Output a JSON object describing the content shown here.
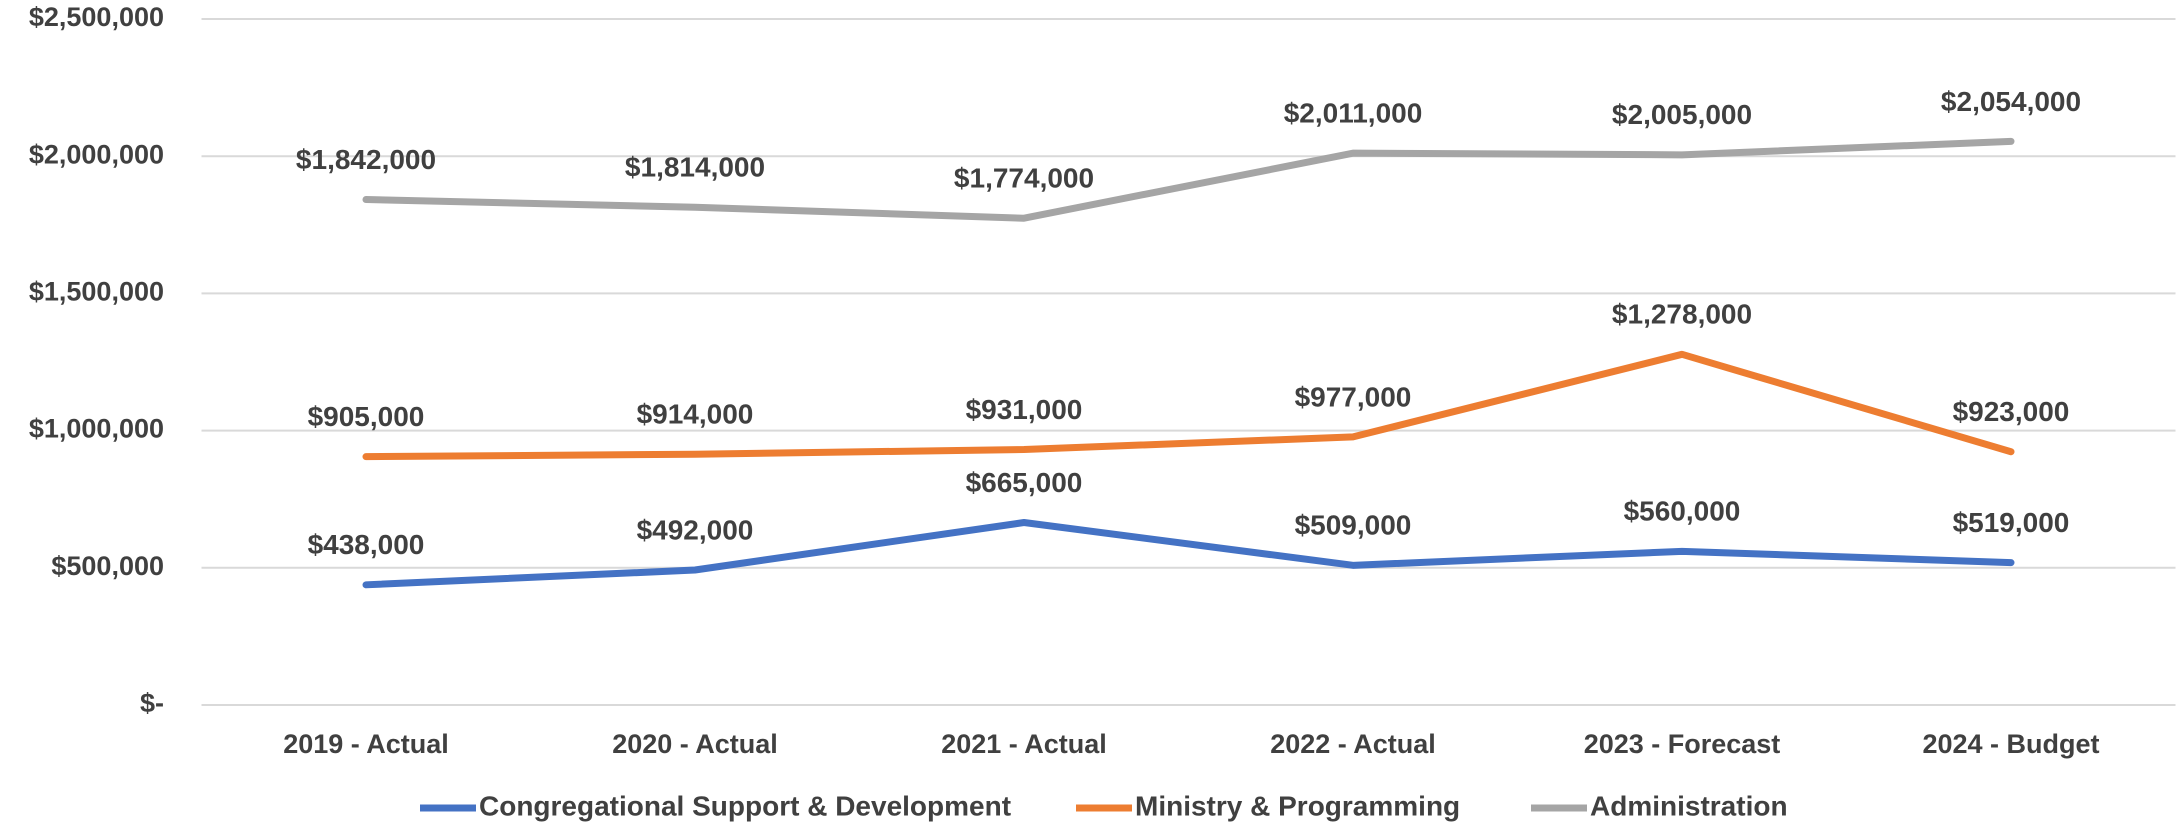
{
  "chart_data": {
    "type": "line",
    "categories": [
      "2019 - Actual",
      "2020 - Actual",
      "2021 - Actual",
      "2022 - Actual",
      "2023 - Forecast",
      "2024 - Budget"
    ],
    "series": [
      {
        "name": "Congregational Support & Development",
        "color": "#4472c4",
        "values": [
          438000,
          492000,
          665000,
          509000,
          560000,
          519000
        ],
        "value_labels": [
          "$438,000",
          "$492,000",
          "$665,000",
          "$509,000",
          "$560,000",
          "$519,000"
        ]
      },
      {
        "name": "Ministry & Programming",
        "color": "#ed7d31",
        "values": [
          905000,
          914000,
          931000,
          977000,
          1278000,
          923000
        ],
        "value_labels": [
          "$905,000",
          "$914,000",
          "$931,000",
          "$977,000",
          "$1,278,000",
          "$923,000"
        ]
      },
      {
        "name": "Administration",
        "color": "#a5a5a5",
        "values": [
          1842000,
          1814000,
          1774000,
          2011000,
          2005000,
          2054000
        ],
        "value_labels": [
          "$1,842,000",
          "$1,814,000",
          "$1,774,000",
          "$2,011,000",
          "$2,005,000",
          "$2,054,000"
        ]
      }
    ],
    "ylim": [
      0,
      2500000
    ],
    "yticks": [
      {
        "value": 0,
        "label": "$-"
      },
      {
        "value": 500000,
        "label": "$500,000"
      },
      {
        "value": 1000000,
        "label": "$1,000,000"
      },
      {
        "value": 1500000,
        "label": "$1,500,000"
      },
      {
        "value": 2000000,
        "label": "$2,000,000"
      },
      {
        "value": 2500000,
        "label": "$2,500,000"
      }
    ],
    "grid": true,
    "legend": "bottom"
  }
}
